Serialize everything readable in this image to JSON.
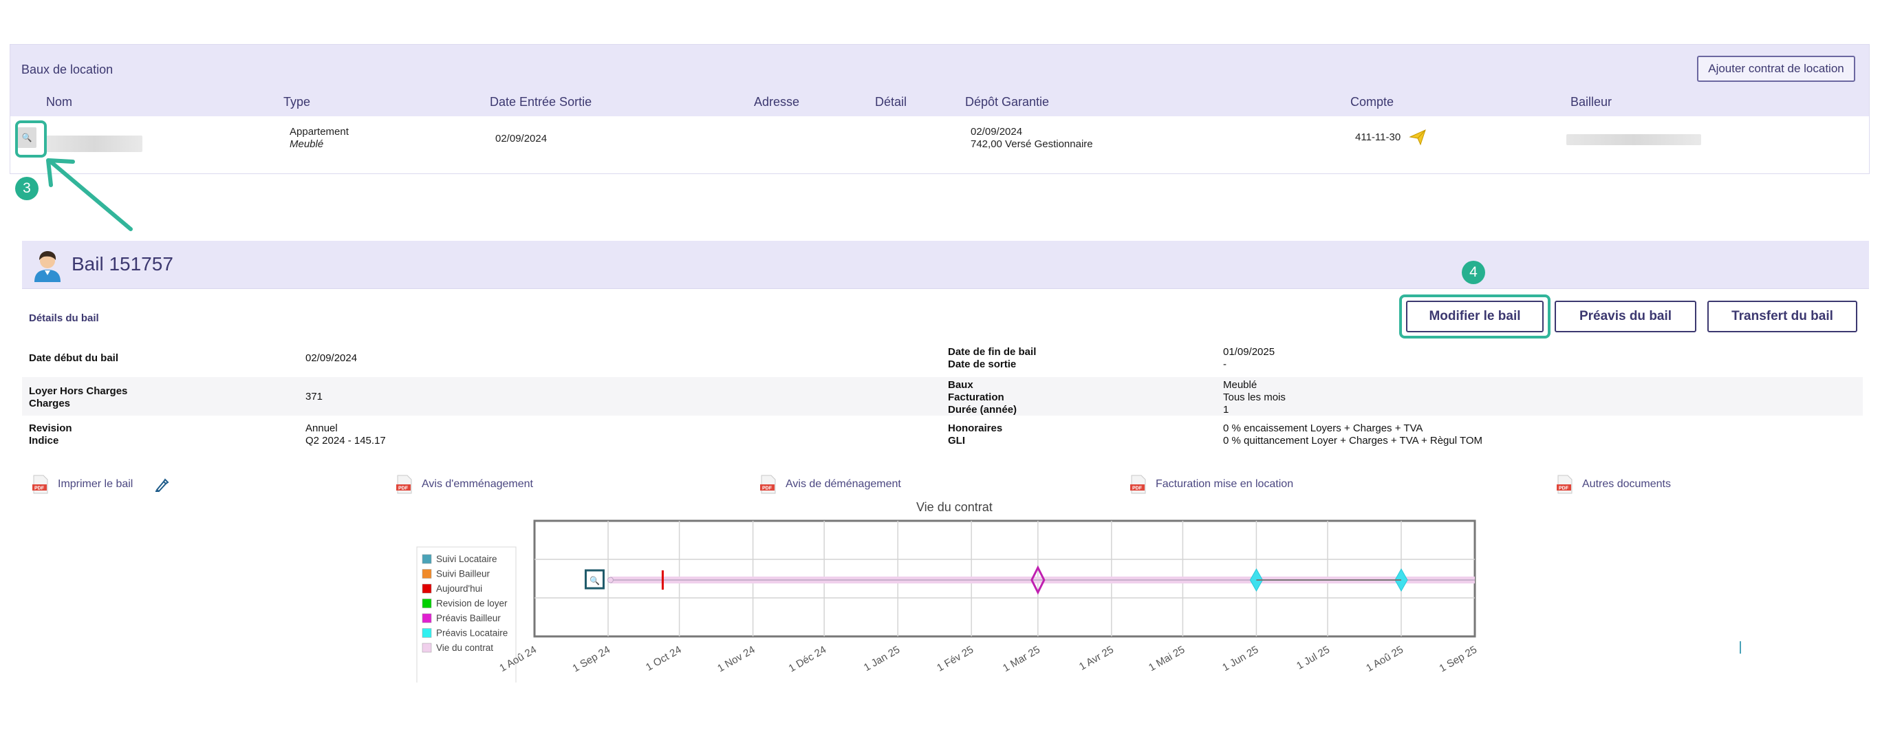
{
  "leases_panel": {
    "title": "Baux de location",
    "add_button": "Ajouter contrat de location",
    "columns": [
      "Nom",
      "Type",
      "Date Entrée Sortie",
      "Adresse",
      "Détail",
      "Dépôt Garantie",
      "Compte",
      "Bailleur"
    ],
    "row": {
      "type_main": "Appartement",
      "type_sub": "Meublé",
      "date_entry": "02/09/2024",
      "deposit_date": "02/09/2024",
      "deposit_amount": "742,00 Versé Gestionnaire",
      "account": "411-11-30"
    }
  },
  "annotations": {
    "step3": "3",
    "step4": "4"
  },
  "lease": {
    "title": "Bail 151757",
    "details_label": "Détails du bail",
    "buttons": {
      "modify": "Modifier le bail",
      "notice": "Préavis du bail",
      "transfer": "Transfert du bail"
    },
    "info": {
      "start_label": "Date début du bail",
      "start_value": "02/09/2024",
      "end_label": "Date de fin de bail",
      "exit_label": "Date de sortie",
      "end_value": "01/09/2025",
      "exit_value": "-",
      "rent_label": "Loyer Hors Charges",
      "charges_label": "Charges",
      "rent_value": "371",
      "baux_label": "Baux",
      "billing_label": "Facturation",
      "duration_label": "Durée (année)",
      "baux_value": "Meublé",
      "billing_value": "Tous les mois",
      "duration_value": "1",
      "revision_label": "Revision",
      "index_label": "Indice",
      "revision_value": "Annuel",
      "index_value": "Q2 2024 - 145.17",
      "fees_label": "Honoraires",
      "gli_label": "GLI",
      "fees_value": "0 % encaissement Loyers + Charges + TVA",
      "gli_value": "0 % quittancement Loyer + Charges + TVA + Règul TOM"
    },
    "documents": [
      "Imprimer le bail",
      "Avis d'emménagement",
      "Avis de déménagement",
      "Facturation mise en location",
      "Autres documents"
    ]
  },
  "chart_data": {
    "type": "timeline",
    "title": "Vie du contrat",
    "x_ticks": [
      "1 Aoû 24",
      "1 Sep 24",
      "1 Oct 24",
      "1 Nov 24",
      "1 Déc 24",
      "1 Jan 25",
      "1 Fév 25",
      "1 Mar 25",
      "1 Avr 25",
      "1 Mai 25",
      "1 Jun 25",
      "1 Jul 25",
      "1 Aoû 25",
      "1 Sep 25"
    ],
    "xlim": [
      "2024-08-01",
      "2025-09-01"
    ],
    "legend": [
      {
        "name": "Suivi Locataire",
        "color": "#4aa3b8"
      },
      {
        "name": "Suivi Bailleur",
        "color": "#f08a2a"
      },
      {
        "name": "Aujourd'hui",
        "color": "#e00000"
      },
      {
        "name": "Revision de loyer",
        "color": "#00d000"
      },
      {
        "name": "Préavis Bailleur",
        "color": "#e020d0"
      },
      {
        "name": "Préavis Locataire",
        "color": "#30f0f0"
      },
      {
        "name": "Vie du contrat",
        "color": "#f0d0ec"
      }
    ],
    "contract_period": [
      "2024-09-02",
      "2025-09-01"
    ],
    "events": [
      {
        "series": "Suivi Locataire",
        "date": "2024-09-02"
      },
      {
        "series": "Aujourd'hui",
        "date": "2024-09-24"
      },
      {
        "series": "Préavis Bailleur",
        "date": "2025-03-01"
      },
      {
        "series": "Préavis Locataire",
        "date": "2025-06-01"
      },
      {
        "series": "Préavis Locataire",
        "date": "2025-08-01"
      }
    ]
  }
}
